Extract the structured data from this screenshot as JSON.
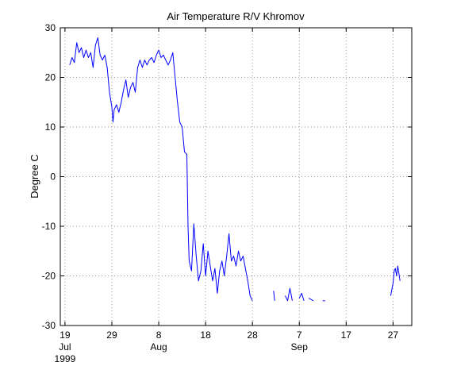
{
  "chart_data": {
    "type": "line",
    "title": "Air Temperature R/V Khromov",
    "xlabel": "",
    "ylabel": "Degree C",
    "xlim": [
      "1999-07-18",
      "1999-10-01"
    ],
    "ylim": [
      -30,
      30
    ],
    "grid": true,
    "x_ticks": [
      {
        "value": "1999-07-19",
        "label": "19",
        "sub": "Jul",
        "sub2": "1999"
      },
      {
        "value": "1999-07-29",
        "label": "29",
        "sub": "",
        "sub2": ""
      },
      {
        "value": "1999-08-08",
        "label": "8",
        "sub": "Aug",
        "sub2": ""
      },
      {
        "value": "1999-08-18",
        "label": "18",
        "sub": "",
        "sub2": ""
      },
      {
        "value": "1999-08-28",
        "label": "28",
        "sub": "",
        "sub2": ""
      },
      {
        "value": "1999-09-07",
        "label": "7",
        "sub": "Sep",
        "sub2": ""
      },
      {
        "value": "1999-09-17",
        "label": "17",
        "sub": "",
        "sub2": ""
      },
      {
        "value": "1999-09-27",
        "label": "27",
        "sub": "",
        "sub2": ""
      }
    ],
    "y_ticks": [
      {
        "value": -30,
        "label": "-30"
      },
      {
        "value": -20,
        "label": "-20"
      },
      {
        "value": -10,
        "label": "-10"
      },
      {
        "value": 0,
        "label": "0"
      },
      {
        "value": 10,
        "label": "10"
      },
      {
        "value": 20,
        "label": "20"
      },
      {
        "value": 30,
        "label": "30"
      }
    ],
    "series": [
      {
        "color": "#0000ff",
        "segments": [
          [
            [
              "1999-07-20",
              22.5
            ],
            [
              "1999-07-20T12:00",
              24.0
            ],
            [
              "1999-07-21",
              23.0
            ],
            [
              "1999-07-21T12:00",
              27.0
            ],
            [
              "1999-07-22",
              25.0
            ],
            [
              "1999-07-22T12:00",
              26.0
            ],
            [
              "1999-07-23",
              24.0
            ],
            [
              "1999-07-23T12:00",
              25.5
            ],
            [
              "1999-07-24",
              24.0
            ],
            [
              "1999-07-24T12:00",
              25.0
            ],
            [
              "1999-07-25",
              22.0
            ],
            [
              "1999-07-25T12:00",
              26.5
            ],
            [
              "1999-07-26",
              28.0
            ],
            [
              "1999-07-26T12:00",
              24.5
            ],
            [
              "1999-07-27",
              23.5
            ],
            [
              "1999-07-27T12:00",
              24.5
            ],
            [
              "1999-07-28",
              22.0
            ],
            [
              "1999-07-28T12:00",
              17.0
            ],
            [
              "1999-07-29",
              14.0
            ],
            [
              "1999-07-29T06:00",
              11.0
            ],
            [
              "1999-07-29T12:00",
              13.5
            ],
            [
              "1999-07-30",
              14.5
            ],
            [
              "1999-07-30T12:00",
              13.0
            ],
            [
              "1999-07-31",
              15.0
            ],
            [
              "1999-07-31T12:00",
              17.5
            ],
            [
              "1999-08-01",
              19.5
            ],
            [
              "1999-08-01T12:00",
              16.0
            ],
            [
              "1999-08-02",
              18.0
            ],
            [
              "1999-08-02T12:00",
              19.0
            ],
            [
              "1999-08-03",
              17.0
            ],
            [
              "1999-08-03T12:00",
              22.0
            ],
            [
              "1999-08-04",
              23.5
            ],
            [
              "1999-08-04T12:00",
              22.0
            ],
            [
              "1999-08-05",
              23.5
            ],
            [
              "1999-08-05T12:00",
              22.5
            ],
            [
              "1999-08-06",
              23.5
            ],
            [
              "1999-08-06T12:00",
              24.0
            ],
            [
              "1999-08-07",
              23.0
            ],
            [
              "1999-08-07T12:00",
              24.5
            ],
            [
              "1999-08-08",
              25.5
            ],
            [
              "1999-08-08T12:00",
              24.0
            ],
            [
              "1999-08-09",
              24.5
            ],
            [
              "1999-08-09T12:00",
              23.5
            ],
            [
              "1999-08-10",
              22.5
            ],
            [
              "1999-08-10T12:00",
              23.5
            ],
            [
              "1999-08-11",
              25.0
            ],
            [
              "1999-08-11T12:00",
              20.0
            ],
            [
              "1999-08-12",
              15.0
            ],
            [
              "1999-08-12T12:00",
              11.0
            ],
            [
              "1999-08-13",
              10.0
            ],
            [
              "1999-08-13T12:00",
              5.0
            ],
            [
              "1999-08-14",
              4.5
            ],
            [
              "1999-08-14T06:00",
              -10.0
            ],
            [
              "1999-08-14T12:00",
              -17.0
            ],
            [
              "1999-08-15",
              -19.0
            ],
            [
              "1999-08-15T12:00",
              -9.5
            ],
            [
              "1999-08-16",
              -16.0
            ],
            [
              "1999-08-16T12:00",
              -21.0
            ],
            [
              "1999-08-17",
              -19.0
            ],
            [
              "1999-08-17T12:00",
              -13.5
            ],
            [
              "1999-08-18",
              -20.0
            ],
            [
              "1999-08-18T12:00",
              -15.0
            ],
            [
              "1999-08-19",
              -18.0
            ],
            [
              "1999-08-19T12:00",
              -21.0
            ],
            [
              "1999-08-20",
              -18.5
            ],
            [
              "1999-08-20T12:00",
              -23.5
            ],
            [
              "1999-08-21",
              -19.0
            ],
            [
              "1999-08-21T12:00",
              -17.0
            ],
            [
              "1999-08-22",
              -20.0
            ],
            [
              "1999-08-22T12:00",
              -16.0
            ],
            [
              "1999-08-23",
              -11.5
            ],
            [
              "1999-08-23T12:00",
              -17.0
            ],
            [
              "1999-08-24",
              -16.0
            ],
            [
              "1999-08-24T12:00",
              -18.0
            ],
            [
              "1999-08-25",
              -15.0
            ],
            [
              "1999-08-25T12:00",
              -17.0
            ],
            [
              "1999-08-26",
              -16.0
            ],
            [
              "1999-08-26T12:00",
              -18.5
            ],
            [
              "1999-08-27",
              -21.0
            ],
            [
              "1999-08-27T12:00",
              -24.0
            ],
            [
              "1999-08-28",
              -25.0
            ]
          ],
          [
            [
              "1999-09-01T12:00",
              -23.0
            ],
            [
              "1999-09-01T18:00",
              -25.0
            ]
          ],
          [
            [
              "1999-09-04",
              -24.0
            ],
            [
              "1999-09-04T12:00",
              -25.0
            ],
            [
              "1999-09-05",
              -22.5
            ],
            [
              "1999-09-05T12:00",
              -25.0
            ]
          ],
          [
            [
              "1999-09-07",
              -24.5
            ],
            [
              "1999-09-07T12:00",
              -23.5
            ],
            [
              "1999-09-08",
              -25.0
            ]
          ],
          [
            [
              "1999-09-09",
              -24.5
            ],
            [
              "1999-09-10",
              -25.0
            ]
          ],
          [
            [
              "1999-09-12",
              -25.0
            ],
            [
              "1999-09-12T12:00",
              -25.0
            ]
          ],
          [
            [
              "1999-09-26T12:00",
              -24.0
            ],
            [
              "1999-09-27",
              -21.5
            ],
            [
              "1999-09-27T06:00",
              -19.0
            ],
            [
              "1999-09-27T12:00",
              -18.5
            ],
            [
              "1999-09-27T18:00",
              -20.0
            ],
            [
              "1999-09-28",
              -18.0
            ],
            [
              "1999-09-28T06:00",
              -19.5
            ],
            [
              "1999-09-28T12:00",
              -21.0
            ]
          ]
        ]
      }
    ]
  }
}
